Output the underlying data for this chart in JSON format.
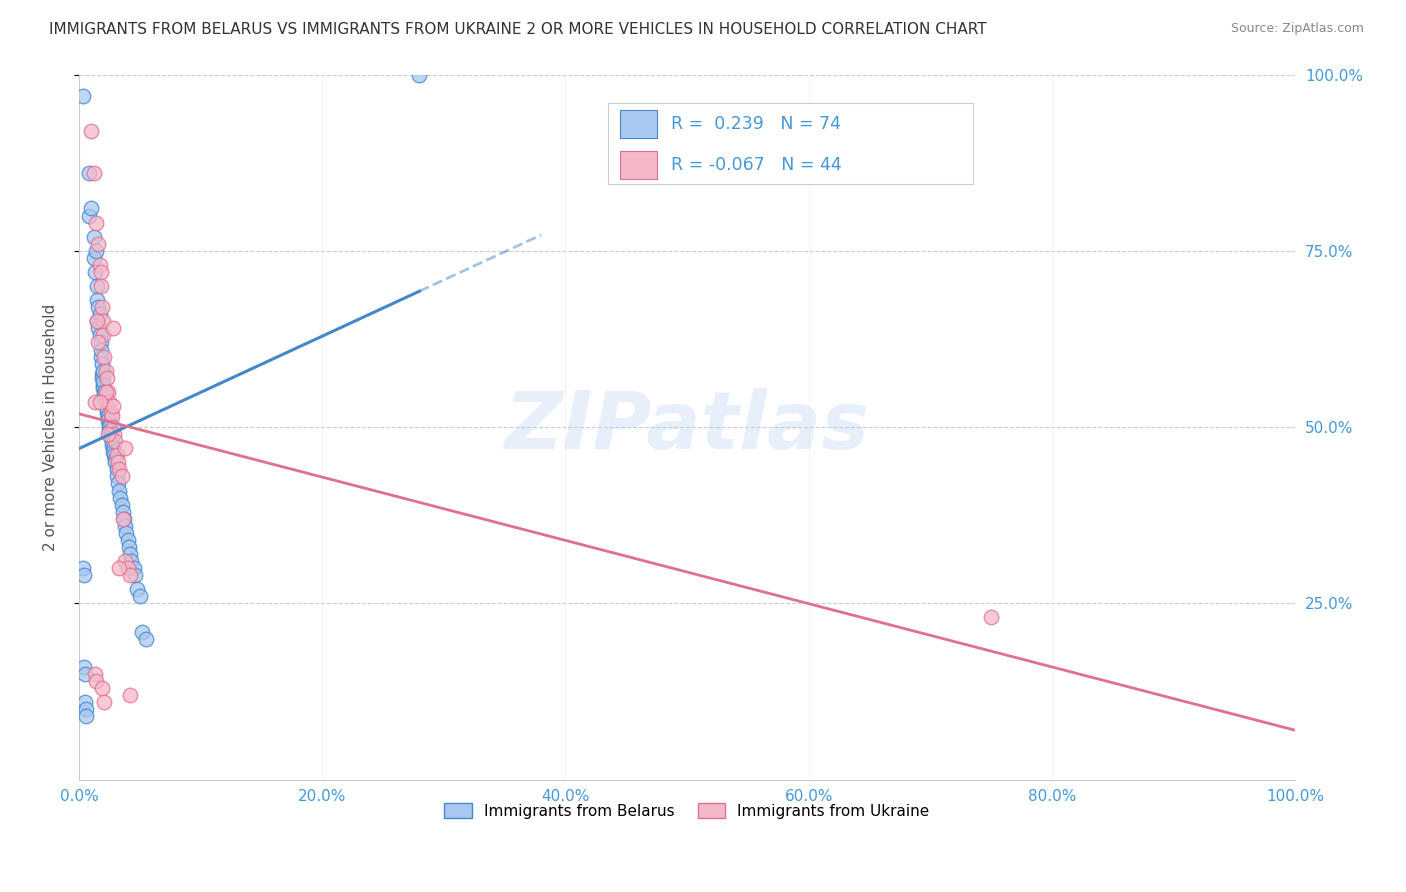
{
  "title": "IMMIGRANTS FROM BELARUS VS IMMIGRANTS FROM UKRAINE 2 OR MORE VEHICLES IN HOUSEHOLD CORRELATION CHART",
  "source": "Source: ZipAtlas.com",
  "ylabel": "2 or more Vehicles in Household",
  "xlim": [
    0,
    1.0
  ],
  "ylim": [
    0,
    1.0
  ],
  "xtick_labels": [
    "0.0%",
    "20.0%",
    "40.0%",
    "60.0%",
    "80.0%",
    "100.0%"
  ],
  "xtick_values": [
    0.0,
    0.2,
    0.4,
    0.6,
    0.8,
    1.0
  ],
  "ytick_labels_left": [
    "100.0%",
    "75.0%",
    "50.0%",
    "25.0%"
  ],
  "ytick_labels_right": [
    "100.0%",
    "75.0%",
    "50.0%",
    "25.0%"
  ],
  "ytick_values": [
    1.0,
    0.75,
    0.5,
    0.25
  ],
  "watermark": "ZIPatlas",
  "r_belarus": 0.239,
  "n_belarus": 74,
  "r_ukraine": -0.067,
  "n_ukraine": 44,
  "color_belarus": "#A8C8F0",
  "color_ukraine": "#F4B8C8",
  "line_color_belarus": "#4488CC",
  "line_color_ukraine": "#E07090",
  "background_color": "#FFFFFF",
  "title_color": "#333333",
  "axis_label_color": "#4499DD",
  "grid_color": "#CCCCCC",
  "belarus_x": [
    0.003,
    0.008,
    0.008,
    0.01,
    0.012,
    0.012,
    0.013,
    0.014,
    0.015,
    0.015,
    0.015,
    0.016,
    0.016,
    0.017,
    0.017,
    0.018,
    0.018,
    0.018,
    0.019,
    0.019,
    0.019,
    0.02,
    0.02,
    0.02,
    0.02,
    0.021,
    0.021,
    0.021,
    0.022,
    0.022,
    0.023,
    0.023,
    0.024,
    0.024,
    0.025,
    0.025,
    0.025,
    0.026,
    0.026,
    0.027,
    0.027,
    0.028,
    0.028,
    0.029,
    0.03,
    0.03,
    0.031,
    0.031,
    0.032,
    0.033,
    0.034,
    0.035,
    0.036,
    0.037,
    0.038,
    0.039,
    0.04,
    0.041,
    0.042,
    0.043,
    0.045,
    0.046,
    0.048,
    0.05,
    0.052,
    0.055,
    0.003,
    0.004,
    0.004,
    0.005,
    0.005,
    0.006,
    0.28,
    0.006
  ],
  "belarus_y": [
    0.97,
    0.86,
    0.8,
    0.81,
    0.77,
    0.74,
    0.72,
    0.75,
    0.7,
    0.68,
    0.65,
    0.67,
    0.64,
    0.66,
    0.63,
    0.62,
    0.6,
    0.61,
    0.59,
    0.575,
    0.57,
    0.56,
    0.555,
    0.565,
    0.58,
    0.55,
    0.545,
    0.54,
    0.535,
    0.53,
    0.52,
    0.525,
    0.515,
    0.51,
    0.505,
    0.5,
    0.495,
    0.49,
    0.485,
    0.48,
    0.475,
    0.47,
    0.465,
    0.46,
    0.455,
    0.45,
    0.44,
    0.43,
    0.42,
    0.41,
    0.4,
    0.39,
    0.38,
    0.37,
    0.36,
    0.35,
    0.34,
    0.33,
    0.32,
    0.31,
    0.3,
    0.29,
    0.27,
    0.26,
    0.21,
    0.2,
    0.3,
    0.29,
    0.16,
    0.15,
    0.11,
    0.1,
    1.0,
    0.09
  ],
  "ukraine_x": [
    0.01,
    0.012,
    0.014,
    0.016,
    0.017,
    0.018,
    0.018,
    0.019,
    0.02,
    0.02,
    0.021,
    0.022,
    0.023,
    0.024,
    0.025,
    0.026,
    0.027,
    0.028,
    0.028,
    0.029,
    0.03,
    0.031,
    0.032,
    0.033,
    0.035,
    0.036,
    0.038,
    0.04,
    0.042,
    0.015,
    0.013,
    0.016,
    0.022,
    0.038,
    0.75,
    0.013,
    0.014,
    0.019,
    0.024,
    0.028,
    0.033,
    0.042,
    0.017,
    0.021
  ],
  "ukraine_y": [
    0.92,
    0.86,
    0.79,
    0.76,
    0.73,
    0.72,
    0.7,
    0.67,
    0.65,
    0.63,
    0.6,
    0.58,
    0.57,
    0.55,
    0.535,
    0.52,
    0.515,
    0.5,
    0.53,
    0.49,
    0.48,
    0.46,
    0.45,
    0.44,
    0.43,
    0.37,
    0.31,
    0.3,
    0.29,
    0.65,
    0.535,
    0.62,
    0.55,
    0.47,
    0.23,
    0.15,
    0.14,
    0.13,
    0.49,
    0.64,
    0.3,
    0.12,
    0.535,
    0.11
  ]
}
